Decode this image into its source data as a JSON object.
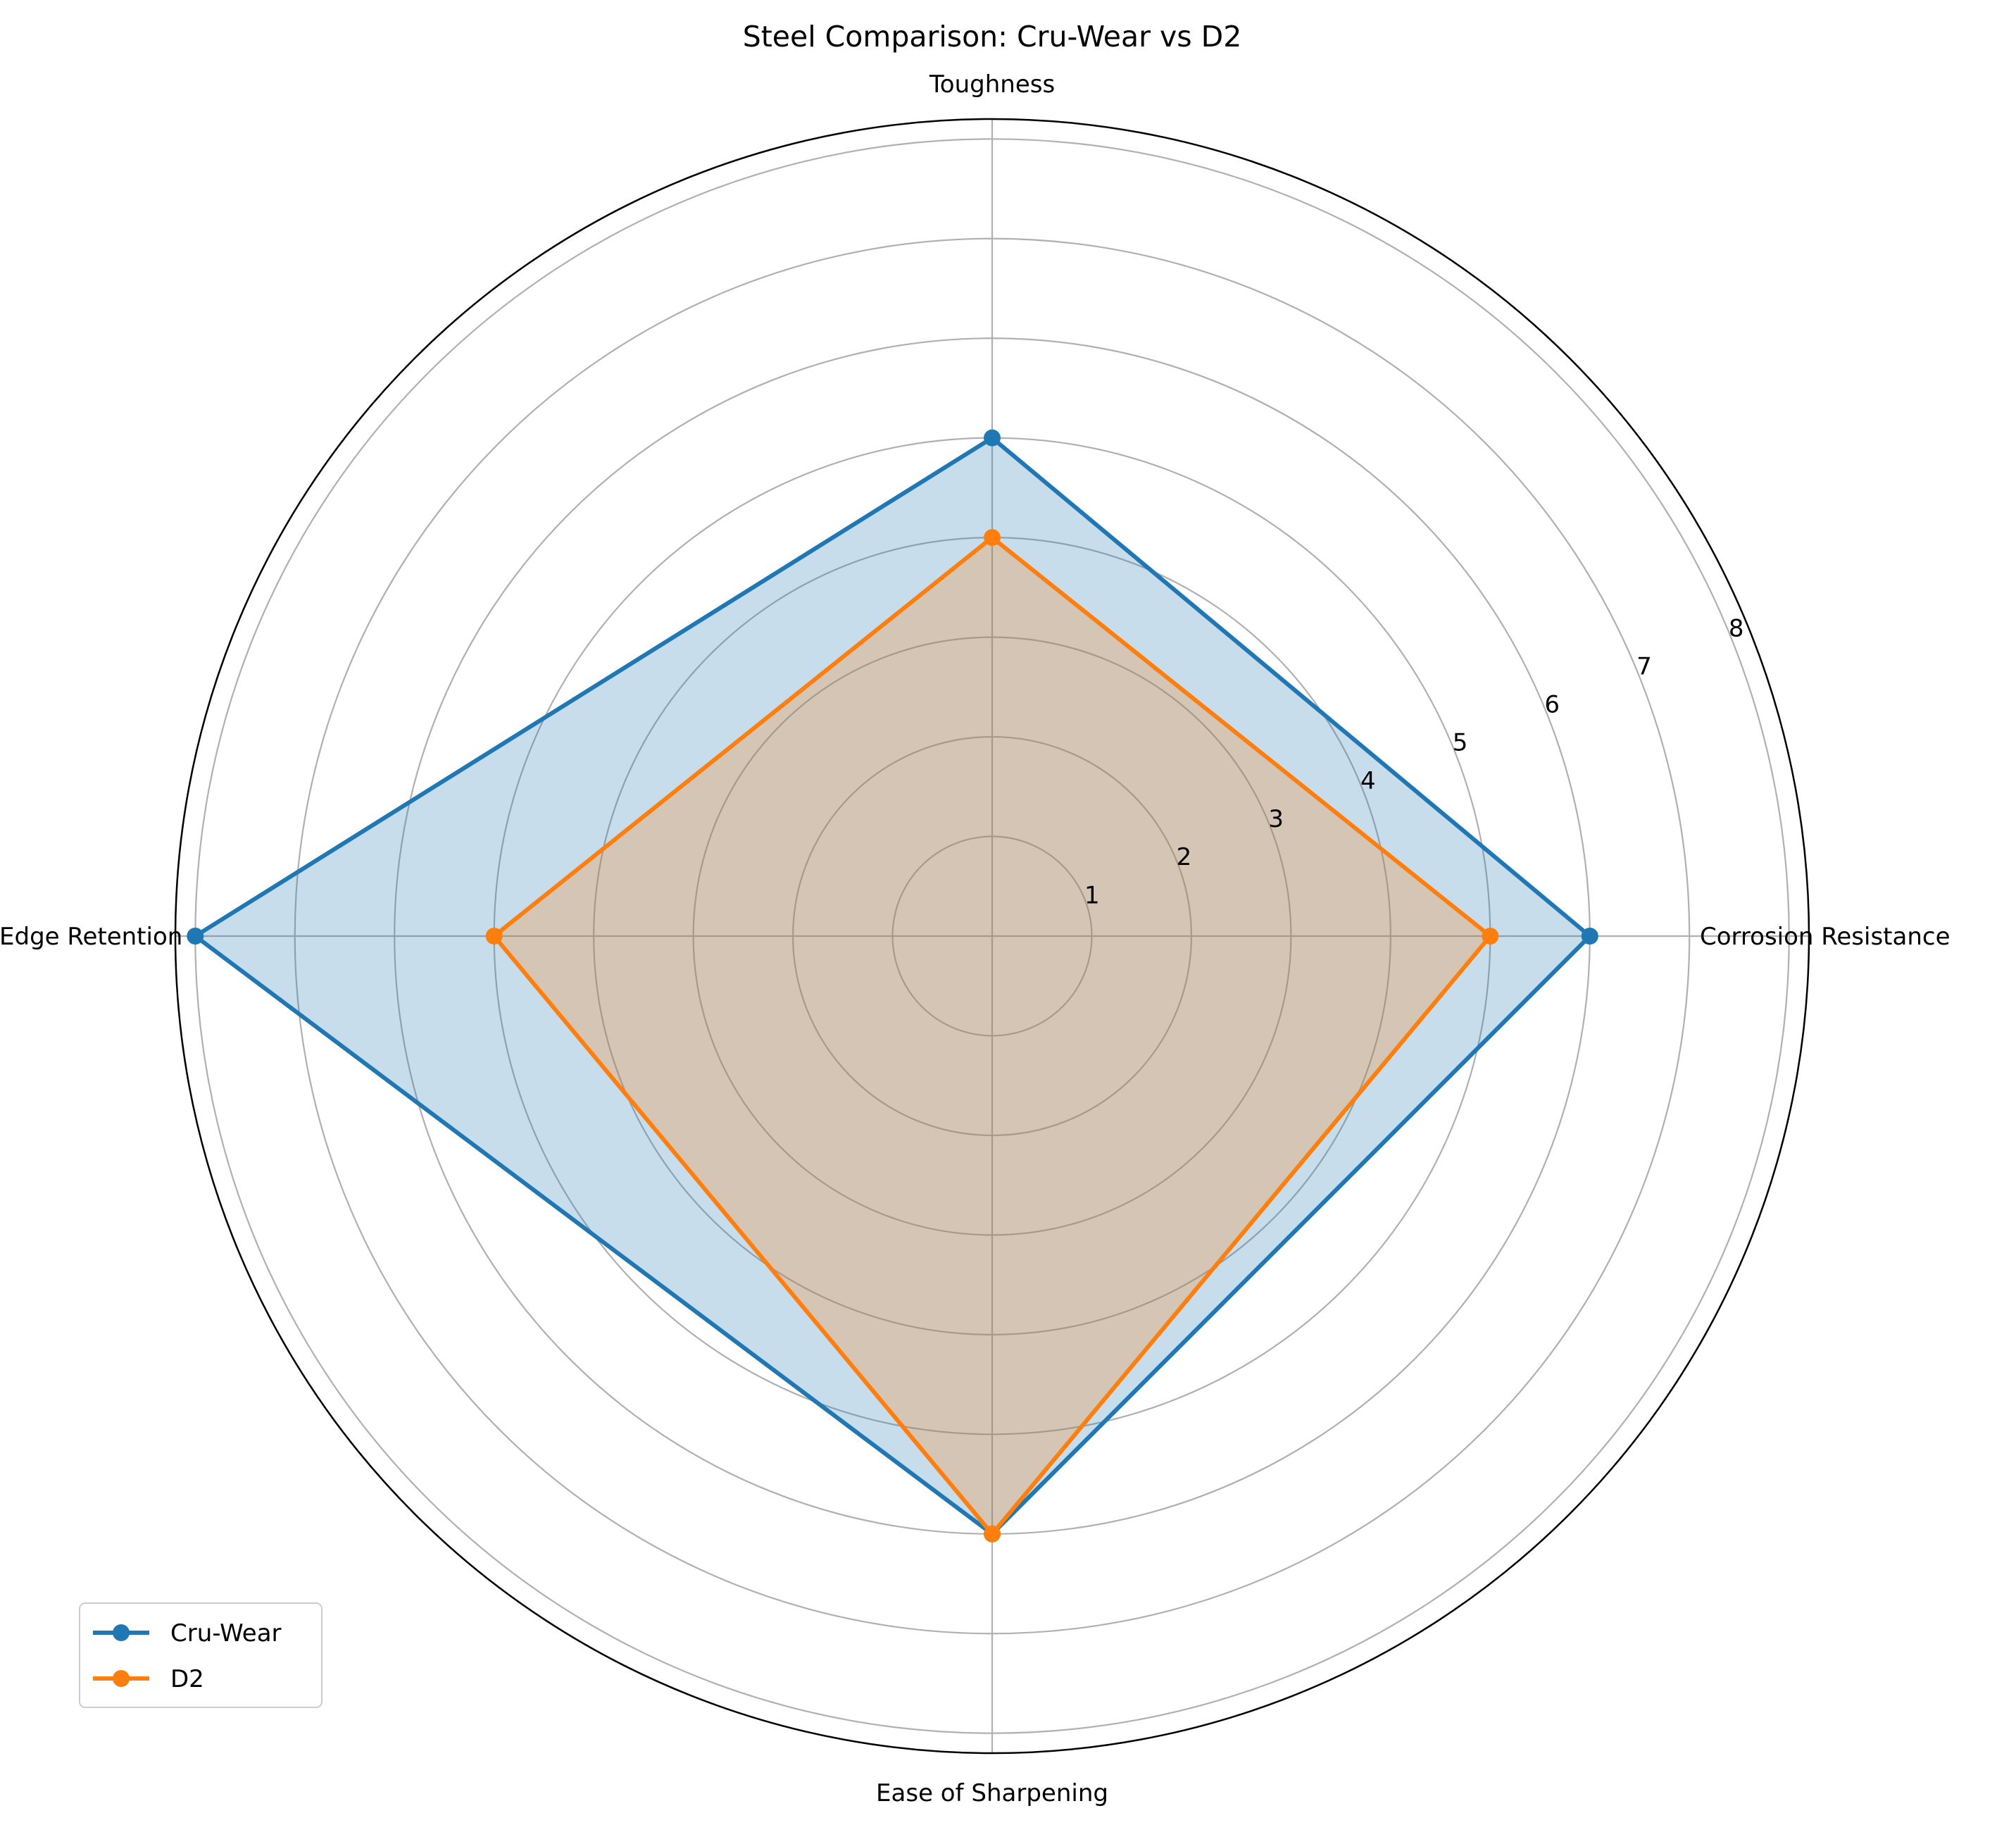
{
  "chart_data": {
    "type": "radar",
    "title": "Steel Comparison: Cru-Wear vs D2",
    "categories": [
      "Corrosion Resistance",
      "Toughness",
      "Edge Retention",
      "Ease of Sharpening"
    ],
    "radial_ticks": [
      "1",
      "2",
      "3",
      "4",
      "5",
      "6",
      "7",
      "8"
    ],
    "rlim": [
      0,
      8.2
    ],
    "grid": true,
    "legend_position": "lower-left",
    "series": [
      {
        "name": "Cru-Wear",
        "color": "#1f77b4",
        "values": [
          6,
          5,
          8,
          6
        ]
      },
      {
        "name": "D2",
        "color": "#ff7f0e",
        "values": [
          5,
          4,
          5,
          6
        ]
      }
    ]
  }
}
